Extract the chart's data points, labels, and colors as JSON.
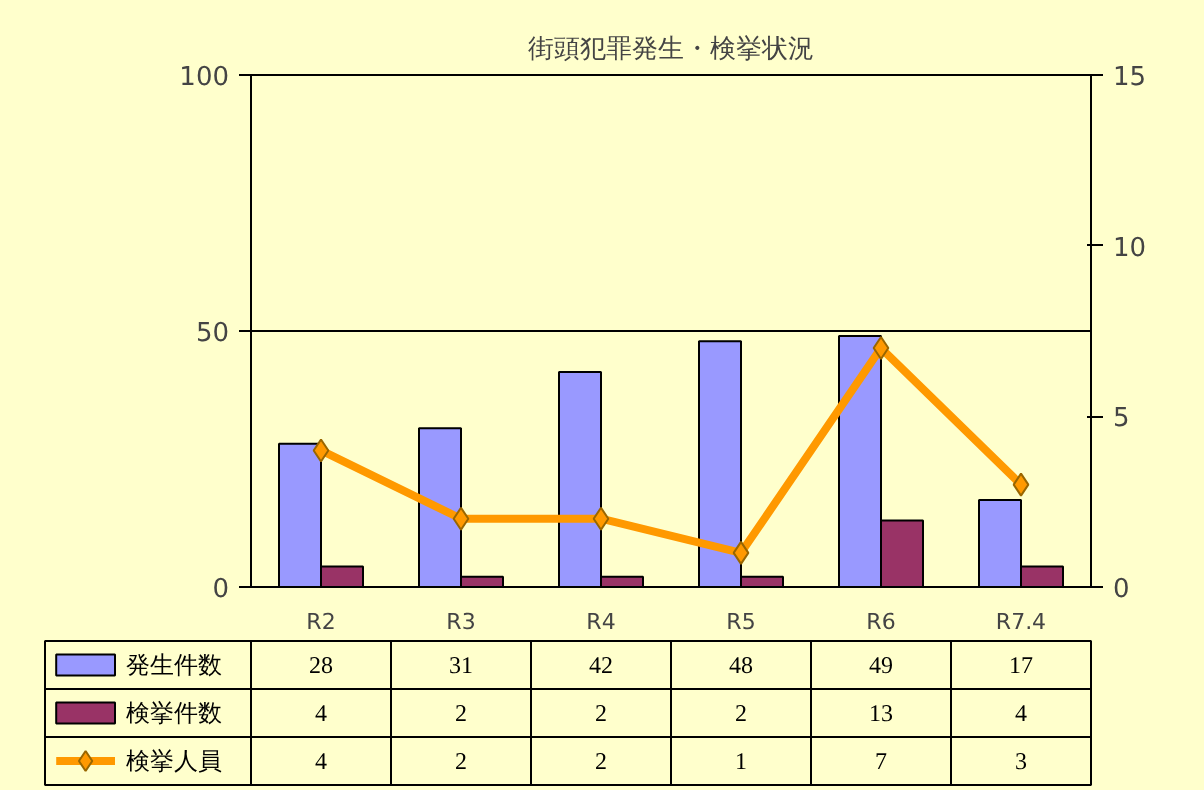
{
  "chart_data": {
    "type": "bar",
    "title": "街頭犯罪発生・検挙状況",
    "categories": [
      "R2",
      "R3",
      "R4",
      "R5",
      "R6",
      "R7.4"
    ],
    "series": [
      {
        "name": "発生件数",
        "color": "#9999ff",
        "values": [
          28,
          31,
          42,
          48,
          49,
          17
        ]
      },
      {
        "name": "検挙件数",
        "color": "#993366",
        "values": [
          4,
          2,
          2,
          2,
          13,
          4
        ]
      },
      {
        "name": "検挙人員",
        "color": "#ff9900",
        "values": [
          4,
          2,
          2,
          1,
          7,
          3
        ],
        "type": "line",
        "axis": "y2",
        "marker": "diamond"
      }
    ],
    "ylim": [
      0,
      100
    ],
    "yticks": [
      0,
      50,
      100
    ],
    "y2lim": [
      0,
      15
    ],
    "y2ticks": [
      0,
      5,
      10,
      15
    ],
    "grid": "y",
    "legend": "bottom",
    "data_labels": true
  }
}
